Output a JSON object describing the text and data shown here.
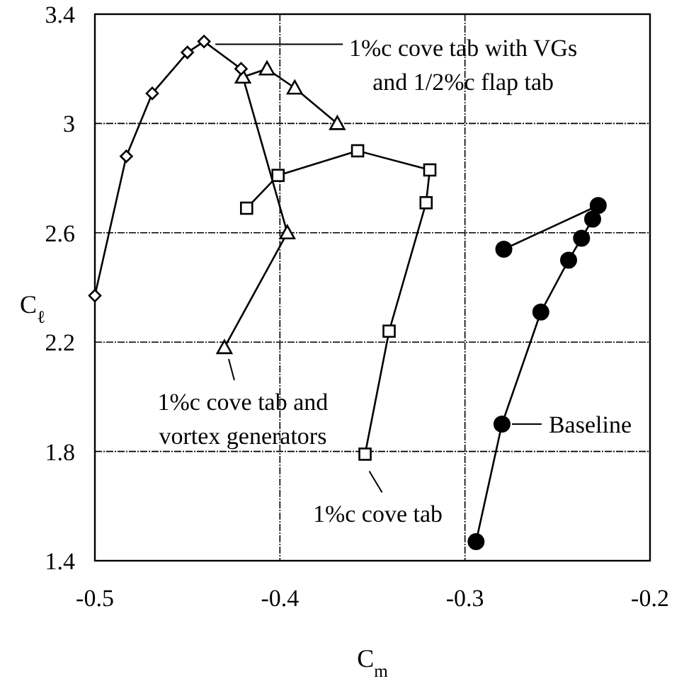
{
  "chart_data": {
    "type": "line",
    "xlabel": "C$_{m}$",
    "ylabel": "C$_{ℓ}$",
    "xlim": [
      -0.5,
      -0.2
    ],
    "xticks": [
      -0.5,
      -0.4,
      -0.3,
      -0.2
    ],
    "ylim": [
      1.4,
      3.4
    ],
    "yticks": [
      1.4,
      1.8,
      2.2,
      2.6,
      3,
      3.4
    ],
    "grid": true,
    "line_style": "solid",
    "series": [
      {
        "color": "#000000",
        "marker": "diamond",
        "x": [
          -0.5,
          -0.483,
          -0.469,
          -0.45,
          -0.441,
          -0.421
        ],
        "values": [
          2.37,
          2.88,
          3.11,
          3.26,
          3.3,
          3.2
        ]
      },
      {
        "color": "#000000",
        "marker": "triangle",
        "x": [
          -0.43,
          -0.396,
          -0.42,
          -0.407,
          -0.392,
          -0.369
        ],
        "values": [
          2.18,
          2.6,
          3.17,
          3.2,
          3.13,
          3.0
        ]
      },
      {
        "color": "#000000",
        "marker": "square",
        "x": [
          -0.418,
          -0.401,
          -0.358,
          -0.319,
          -0.321,
          -0.341,
          -0.354
        ],
        "values": [
          2.69,
          2.81,
          2.9,
          2.83,
          2.71,
          2.24,
          1.79
        ]
      },
      {
        "color": "#000000",
        "marker": "circle",
        "x": [
          -0.279,
          -0.228,
          -0.231,
          -0.237,
          -0.244,
          -0.259,
          -0.28,
          -0.294
        ],
        "values": [
          2.54,
          2.7,
          2.65,
          2.58,
          2.5,
          2.31,
          1.9,
          1.47
        ]
      }
    ],
    "annotations": [
      {
        "text": "1%c cove tab with VGs\nand 1/2%c flap tab",
        "x": -0.441,
        "y": 3.3
      },
      {
        "text": "1%c cove tab and\nvortex generators",
        "x": -0.43,
        "y": 2.18
      },
      {
        "text": "1%c cove tab",
        "x": -0.354,
        "y": 1.79
      },
      {
        "text": "Baseline",
        "x": -0.28,
        "y": 1.9
      }
    ]
  }
}
